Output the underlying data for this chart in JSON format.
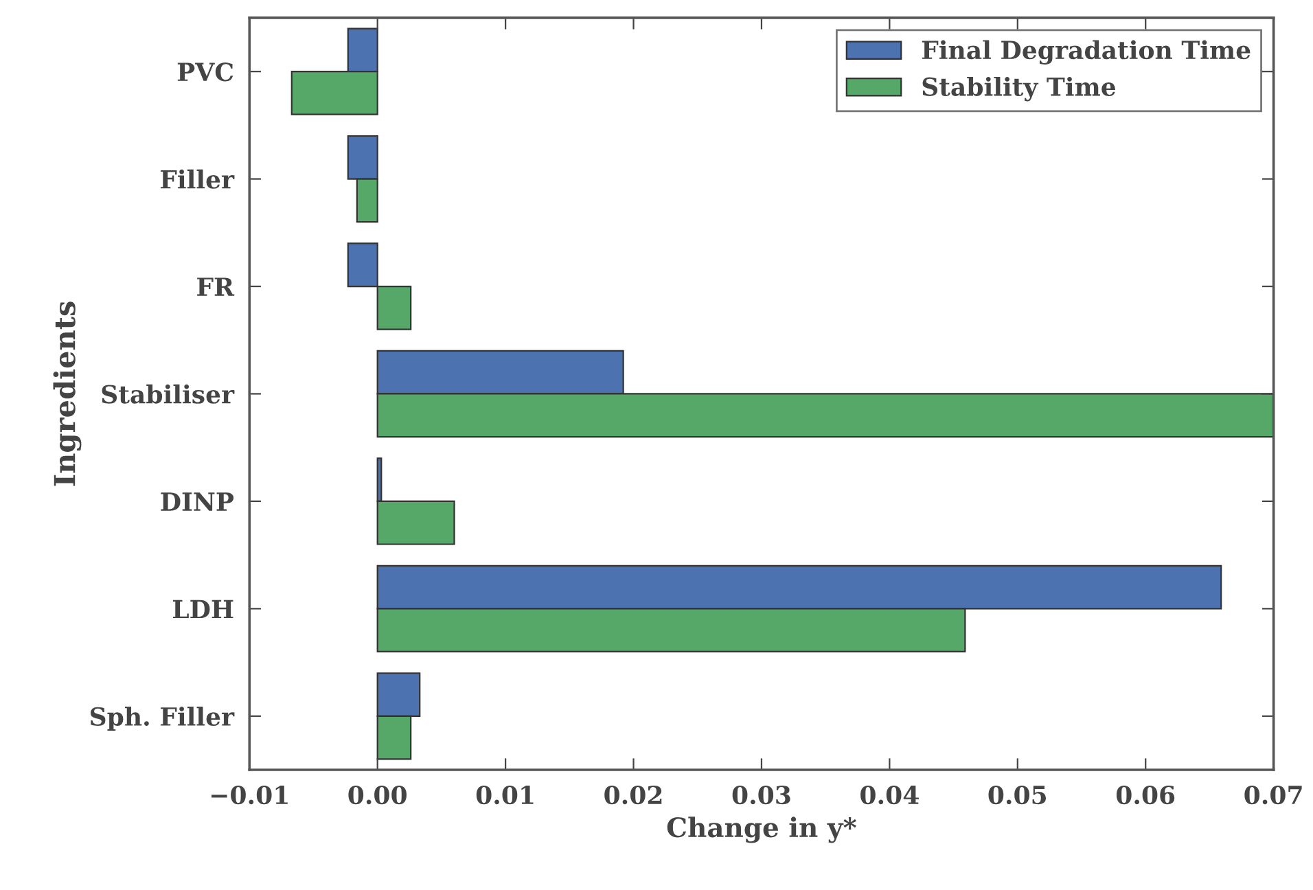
{
  "chart_data": {
    "type": "bar",
    "orientation": "horizontal",
    "xlabel": "Change in y*",
    "ylabel": "Ingredients",
    "categories": [
      "PVC",
      "Filler",
      "FR",
      "Stabiliser",
      "DINP",
      "LDH",
      "Sph. Filler"
    ],
    "series": [
      {
        "name": "Final Degradation Time",
        "color": "#4c72b0",
        "values": [
          -0.0023,
          -0.0023,
          -0.0023,
          0.0192,
          0.0003,
          0.0659,
          0.0033
        ]
      },
      {
        "name": "Stability Time",
        "color": "#55a868",
        "values": [
          -0.0067,
          -0.0016,
          0.0026,
          0.07,
          0.006,
          0.0459,
          0.0026
        ]
      }
    ],
    "xlim": [
      -0.01,
      0.07
    ],
    "xticks": [
      {
        "value": -0.01,
        "label": "−0.01"
      },
      {
        "value": 0,
        "label": "0.00"
      },
      {
        "value": 0.01,
        "label": "0.01"
      },
      {
        "value": 0.02,
        "label": "0.02"
      },
      {
        "value": 0.03,
        "label": "0.03"
      },
      {
        "value": 0.04,
        "label": "0.04"
      },
      {
        "value": 0.05,
        "label": "0.05"
      },
      {
        "value": 0.06,
        "label": "0.06"
      },
      {
        "value": 0.07,
        "label": "0.07"
      }
    ],
    "grid": false,
    "legend": "top right"
  }
}
